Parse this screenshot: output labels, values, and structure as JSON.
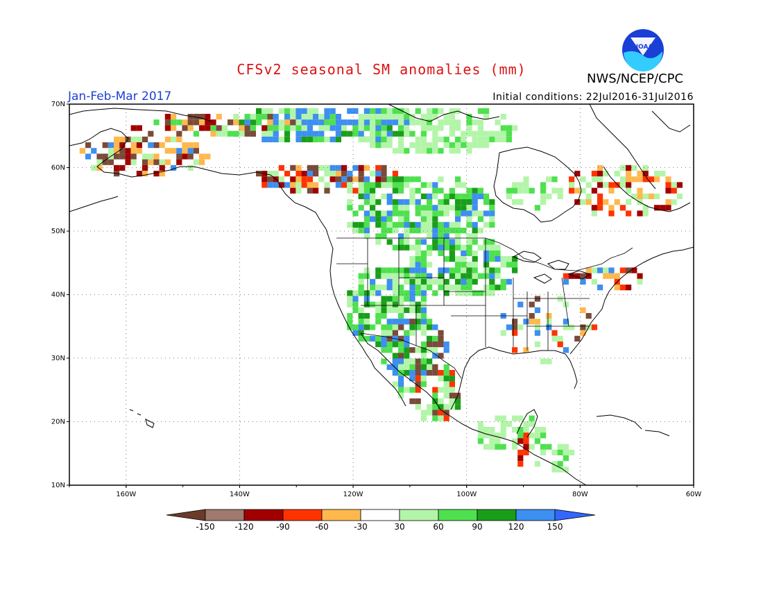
{
  "header": {
    "title": "CFSv2 seasonal SM anomalies (mm)",
    "period": "Jan-Feb-Mar 2017",
    "agency": "NWS/NCEP/CPC",
    "initial_conditions": "Initial conditions: 22Jul2016-31Jul2016",
    "logo_text": "NOAA"
  },
  "map": {
    "lat_ticks": [
      "70N",
      "60N",
      "50N",
      "40N",
      "30N",
      "20N",
      "10N"
    ],
    "lon_ticks": [
      "160W",
      "140W",
      "120W",
      "100W",
      "80W",
      "60W"
    ],
    "lat_range": [
      10,
      70
    ],
    "lon_range": [
      -170,
      -60
    ],
    "grid_lines": "dotted"
  },
  "colorbar": {
    "labels": [
      "-150",
      "-120",
      "-90",
      "-60",
      "-30",
      "30",
      "60",
      "90",
      "120",
      "150"
    ],
    "colors": [
      "#6b3b2a",
      "#a07a6e",
      "#a00000",
      "#ff3300",
      "#ffb84d",
      "#ffffff",
      "#b3f5a8",
      "#4fe04f",
      "#1a9e1a",
      "#3d8ff0",
      "#3366ff"
    ]
  },
  "anomaly_colors": {
    "brown": "#7a4a3a",
    "dark_red": "#a00000",
    "red": "#ff3300",
    "orange": "#ffb84d",
    "light_green": "#b3f5a8",
    "green": "#4fe04f",
    "dark_green": "#1a9e1a",
    "blue": "#3d8ff0"
  }
}
